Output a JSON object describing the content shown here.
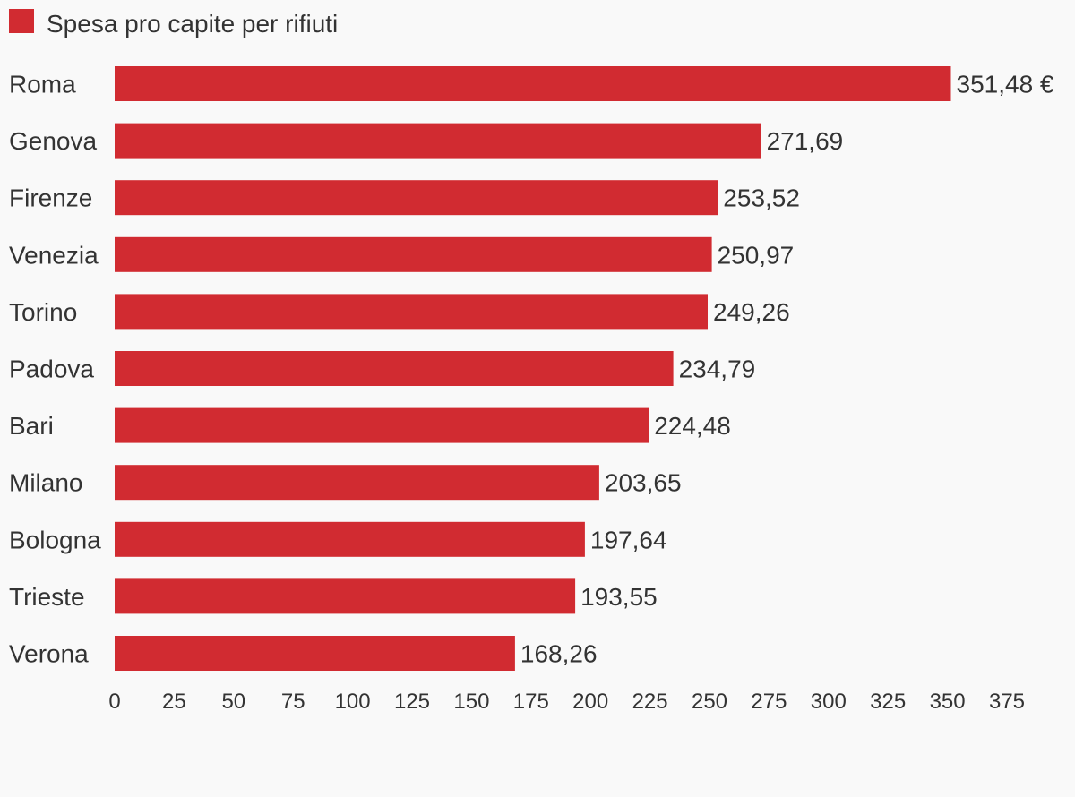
{
  "chart_data": {
    "type": "bar",
    "orientation": "horizontal",
    "legend_position": "top-left",
    "grid": false,
    "series": [
      {
        "name": "Spesa pro capite per rifiuti",
        "color": "#d12b31",
        "values": [
          351.48,
          271.69,
          253.52,
          250.97,
          249.26,
          234.79,
          224.48,
          203.65,
          197.64,
          193.55,
          168.26
        ]
      }
    ],
    "categories": [
      "Roma",
      "Genova",
      "Firenze",
      "Venezia",
      "Torino",
      "Padova",
      "Bari",
      "Milano",
      "Bologna",
      "Trieste",
      "Verona"
    ],
    "value_labels": [
      "351,48 €",
      "271,69",
      "253,52",
      "250,97",
      "249,26",
      "234,79",
      "224,48",
      "203,65",
      "197,64",
      "193,55",
      "168,26"
    ],
    "x_ticks": [
      0,
      25,
      50,
      75,
      100,
      125,
      150,
      175,
      200,
      225,
      250,
      275,
      300,
      325,
      350,
      375
    ],
    "xlim": [
      0,
      375
    ]
  }
}
